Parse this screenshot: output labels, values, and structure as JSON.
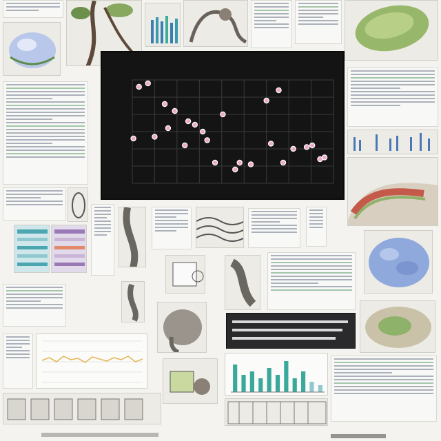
{
  "main_chart": {
    "title": "",
    "x_ticks": [
      "",
      "",
      "",
      "",
      "",
      "",
      "",
      "",
      "",
      ""
    ],
    "y_ticks": [
      "",
      "",
      "",
      "",
      "",
      "",
      ""
    ],
    "colors": {
      "background": "#141414",
      "grid": "#3a3a3a",
      "point": "#f0a9c8",
      "point_stroke": "#ffffff"
    }
  },
  "chart_data": [
    {
      "type": "scatter",
      "title": "",
      "xlabel": "",
      "ylabel": "",
      "xlim": [
        0,
        9
      ],
      "ylim": [
        0,
        6
      ],
      "grid": true,
      "x": [
        0.05,
        0.3,
        0.7,
        1.0,
        1.6,
        1.45,
        1.9,
        2.35,
        2.8,
        2.5,
        3.15,
        3.35,
        3.7,
        4.05,
        4.6,
        4.8,
        5.3,
        6.2,
        6.0,
        6.55,
        6.75,
        7.2,
        7.8,
        8.05,
        8.4,
        8.6
      ],
      "y": [
        2.6,
        5.6,
        5.8,
        2.7,
        3.2,
        4.6,
        4.2,
        2.2,
        3.4,
        3.6,
        3.0,
        2.5,
        1.2,
        4.0,
        0.8,
        1.2,
        1.1,
        2.3,
        4.8,
        5.4,
        1.2,
        2.0,
        2.1,
        2.2,
        1.4,
        1.5
      ]
    },
    {
      "type": "line",
      "x": [
        0,
        1,
        2,
        3,
        4,
        5,
        6,
        7,
        8,
        9,
        10,
        11,
        12,
        13,
        14
      ],
      "series": [
        {
          "values": [
            3.2,
            3.6,
            3.0,
            3.8,
            3.3,
            3.5,
            2.9,
            3.7,
            3.4,
            3.1,
            3.6,
            3.3,
            3.8,
            3.0,
            3.4
          ]
        }
      ]
    },
    {
      "type": "bar",
      "categories": [
        "",
        "",
        "",
        "",
        "",
        "",
        "",
        "",
        "",
        "",
        ""
      ],
      "values": [
        8,
        5,
        6,
        4,
        7,
        5,
        9,
        4,
        6,
        3,
        2
      ]
    }
  ]
}
